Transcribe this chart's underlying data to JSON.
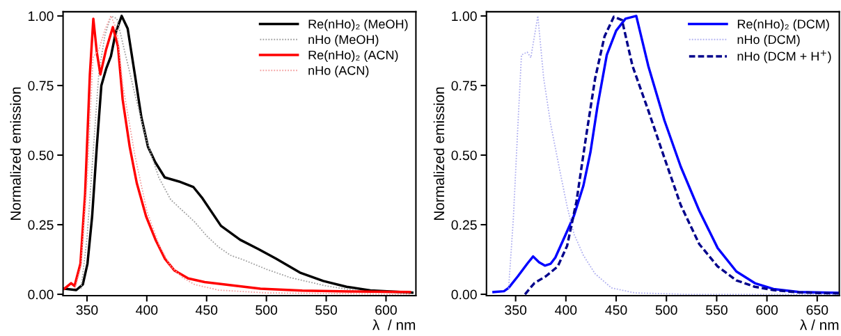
{
  "chart_data": [
    {
      "type": "line",
      "xlabel": "λ  / nm",
      "ylabel": "Normalized emission",
      "xlim": [
        330,
        625
      ],
      "xticks": [
        350,
        400,
        450,
        500,
        550,
        600
      ],
      "ylim": [
        -0.005,
        1.015
      ],
      "yticks": [
        {
          "value": 0,
          "label": "0.00"
        },
        {
          "value": 0.25,
          "label": "0.25"
        },
        {
          "value": 0.5,
          "label": "0.50"
        },
        {
          "value": 0.75,
          "label": "0.75"
        },
        {
          "value": 1,
          "label": "1.00"
        }
      ],
      "grid": false,
      "legend": "top right",
      "series": [
        {
          "name": "Re(nHo)₂ (MeOH)",
          "color": "#000000",
          "line_style": "solid",
          "x": [
            331,
            341,
            346.5,
            350.4,
            354.3,
            358.2,
            362,
            366,
            370,
            374,
            379,
            384,
            390,
            395.5,
            401,
            407,
            415,
            427,
            439,
            446,
            462,
            478,
            493.5,
            508,
            528,
            547.5,
            567,
            587,
            622
          ],
          "values": [
            0.02,
            0.015,
            0.035,
            0.11,
            0.28,
            0.53,
            0.75,
            0.81,
            0.855,
            0.94,
            1.0,
            0.955,
            0.79,
            0.635,
            0.53,
            0.475,
            0.42,
            0.405,
            0.385,
            0.348,
            0.246,
            0.196,
            0.162,
            0.128,
            0.078,
            0.048,
            0.027,
            0.014,
            0.006
          ]
        },
        {
          "name": "nHo (MeOH)",
          "color": "#a0a0a0",
          "line_style": "dotted",
          "x": [
            345,
            350,
            355,
            360,
            365,
            370,
            375,
            380,
            390,
            400,
            410,
            420,
            430,
            440,
            450,
            460,
            470,
            480,
            500,
            520,
            550,
            580,
            620
          ],
          "values": [
            0.02,
            0.2,
            0.5,
            0.8,
            0.93,
            1.0,
            0.99,
            0.9,
            0.72,
            0.55,
            0.42,
            0.34,
            0.3,
            0.26,
            0.21,
            0.17,
            0.14,
            0.125,
            0.09,
            0.06,
            0.03,
            0.01,
            0.003
          ]
        },
        {
          "name": "Re(nHo)₂ (ACN)",
          "color": "#ff0000",
          "line_style": "solid",
          "x": [
            331,
            336.7,
            339.6,
            344.5,
            348.4,
            352.4,
            355.3,
            358.2,
            361.2,
            366,
            371.6,
            375.9,
            379.8,
            385.7,
            391.6,
            399.4,
            407.3,
            415.1,
            423,
            434.7,
            448.4,
            468,
            495,
            530,
            570,
            620
          ],
          "values": [
            0.02,
            0.04,
            0.03,
            0.11,
            0.36,
            0.79,
            0.99,
            0.87,
            0.79,
            0.88,
            0.96,
            0.89,
            0.7,
            0.53,
            0.4,
            0.28,
            0.196,
            0.128,
            0.086,
            0.057,
            0.044,
            0.034,
            0.02,
            0.013,
            0.01,
            0.008
          ]
        },
        {
          "name": "nHo (ACN)",
          "color": "#f4a0a0",
          "line_style": "dotted",
          "x": [
            340,
            345,
            350,
            355,
            360,
            365,
            370,
            375,
            380,
            390,
            400,
            410,
            420,
            430,
            440,
            460,
            500,
            620
          ],
          "values": [
            0.02,
            0.1,
            0.4,
            0.85,
            0.88,
            0.95,
            1.0,
            0.95,
            0.75,
            0.5,
            0.3,
            0.18,
            0.1,
            0.06,
            0.035,
            0.015,
            0.005,
            0.0
          ]
        }
      ]
    },
    {
      "type": "line",
      "xlabel": "λ / nm",
      "ylabel": "Normalized emission",
      "xlim": [
        321,
        672
      ],
      "xticks": [
        350,
        400,
        450,
        500,
        550,
        600,
        650
      ],
      "ylim": [
        -0.005,
        1.015
      ],
      "yticks": [
        {
          "value": 0,
          "label": "0.00"
        },
        {
          "value": 0.25,
          "label": "0.25"
        },
        {
          "value": 0.5,
          "label": "0.50"
        },
        {
          "value": 0.75,
          "label": "0.75"
        },
        {
          "value": 1,
          "label": "1.00"
        }
      ],
      "grid": false,
      "legend": "top right",
      "series": [
        {
          "name": "Re(nHo)₂ (DCM)",
          "color": "#0000ff",
          "line_style": "solid",
          "x": [
            328,
            338.4,
            343,
            352.3,
            361.6,
            367.4,
            373.3,
            379.1,
            384.9,
            389.5,
            398.8,
            408.1,
            417.4,
            424.4,
            431.4,
            440.7,
            450,
            459.3,
            470,
            482,
            498,
            514.3,
            532.7,
            551,
            569.6,
            588,
            606.5,
            631.8,
            671
          ],
          "values": [
            0.008,
            0.011,
            0.023,
            0.065,
            0.11,
            0.136,
            0.115,
            0.103,
            0.11,
            0.132,
            0.207,
            0.283,
            0.39,
            0.51,
            0.675,
            0.86,
            0.947,
            0.99,
            1.0,
            0.82,
            0.625,
            0.458,
            0.3,
            0.166,
            0.082,
            0.04,
            0.019,
            0.008,
            0.005
          ]
        },
        {
          "name": "nHo (DCM)",
          "color": "#b0b0f0",
          "line_style": "dotted",
          "x": [
            343,
            347.7,
            352.3,
            355.8,
            361.6,
            365.1,
            372.1,
            377.9,
            384.9,
            394.2,
            401.2,
            408.1,
            417.4,
            429,
            445.3,
            468.6,
            520,
            600,
            671
          ],
          "values": [
            0.02,
            0.27,
            0.61,
            0.86,
            0.87,
            0.85,
            1.0,
            0.776,
            0.61,
            0.44,
            0.316,
            0.216,
            0.14,
            0.074,
            0.023,
            0.005,
            0.0,
            0.0,
            0.0
          ]
        },
        {
          "name": "nHo (DCM + H$^{+}$)",
          "color": "#00008b",
          "line_style": "dashed",
          "x": [
            359.3,
            368.6,
            380.2,
            391.9,
            401.2,
            410.5,
            419.8,
            429.1,
            438.4,
            447.7,
            455.8,
            466.3,
            482,
            498,
            514.3,
            532.7,
            551,
            569.6,
            588,
            606.5,
            631.8,
            671
          ],
          "values": [
            0.0,
            0.04,
            0.065,
            0.1,
            0.174,
            0.333,
            0.56,
            0.776,
            0.926,
            0.997,
            0.985,
            0.82,
            0.66,
            0.49,
            0.32,
            0.18,
            0.1,
            0.05,
            0.027,
            0.015,
            0.007,
            0.003
          ]
        }
      ]
    }
  ]
}
